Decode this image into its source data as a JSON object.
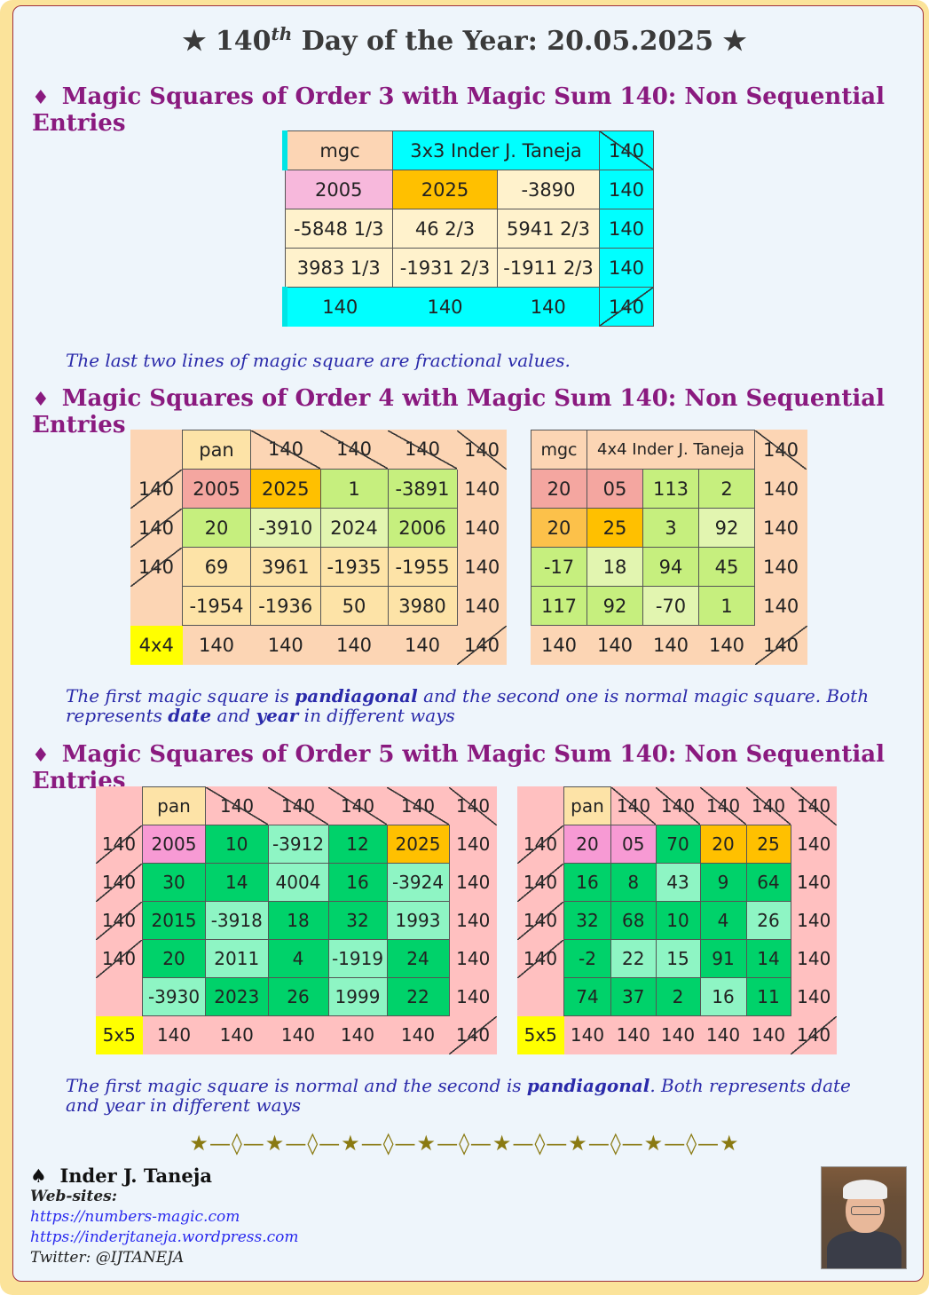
{
  "title": {
    "prefix": "★ 140",
    "sup": "th",
    "suffix": " Day of the Year: 20.05.2025 ★"
  },
  "sections": [
    "Magic Squares of Order 3 with Magic Sum 140: Non Sequential Entries",
    "Magic Squares of Order 4 with Magic Sum 140: Non Sequential Entries",
    "Magic Squares of Order 5 with Magic Sum 140: Non Sequential Entries"
  ],
  "diamond": "♦",
  "notes": {
    "n3": "The last two lines of magic square are fractional values.",
    "n4": {
      "a": "The first magic square is ",
      "b": "pandiagonal",
      "c": " and the second one is normal magic square.  Both represents ",
      "d": "date",
      "e": " and ",
      "f": "year",
      "g": " in different ways"
    },
    "n5": {
      "a": "The first magic square is normal and the second is ",
      "b": "pandiagonal",
      "c": ".  Both represents date and year in different ways"
    }
  },
  "sq3": {
    "label": "mgc",
    "title": "3x3  Inder J. Taneja",
    "sum": "140",
    "rows": [
      [
        "2005",
        "2025",
        "-3890"
      ],
      [
        "-5848 1/3",
        "46 2/3",
        "5941 2/3"
      ],
      [
        "3983 1/3",
        "-1931 2/3",
        "-1911 2/3"
      ]
    ],
    "colsums": [
      "140",
      "140",
      "140"
    ]
  },
  "sq4a": {
    "label": "pan",
    "corner": "4x4",
    "sum": "140",
    "rows": [
      [
        "2005",
        "2025",
        "1",
        "-3891"
      ],
      [
        "20",
        "-3910",
        "2024",
        "2006"
      ],
      [
        "69",
        "3961",
        "-1935",
        "-1955"
      ],
      [
        "-1954",
        "-1936",
        "50",
        "3980"
      ]
    ]
  },
  "sq4b": {
    "label": "mgc",
    "title": "4x4  Inder J. Taneja",
    "sum": "140",
    "rows": [
      [
        "20",
        "05",
        "113",
        "2"
      ],
      [
        "20",
        "25",
        "3",
        "92"
      ],
      [
        "-17",
        "18",
        "94",
        "45"
      ],
      [
        "117",
        "92",
        "-70",
        "1"
      ]
    ]
  },
  "sq5a": {
    "label": "pan",
    "corner": "5x5",
    "sum": "140",
    "rows": [
      [
        "2005",
        "10",
        "-3912",
        "12",
        "2025"
      ],
      [
        "30",
        "14",
        "4004",
        "16",
        "-3924"
      ],
      [
        "2015",
        "-3918",
        "18",
        "32",
        "1993"
      ],
      [
        "20",
        "2011",
        "4",
        "-1919",
        "24"
      ],
      [
        "-3930",
        "2023",
        "26",
        "1999",
        "22"
      ]
    ]
  },
  "sq5b": {
    "label": "pan",
    "corner": "5x5",
    "sum": "140",
    "rows": [
      [
        "20",
        "05",
        "70",
        "20",
        "25"
      ],
      [
        "16",
        "8",
        "43",
        "9",
        "64"
      ],
      [
        "32",
        "68",
        "10",
        "4",
        "26"
      ],
      [
        "-2",
        "22",
        "15",
        "91",
        "14"
      ],
      [
        "74",
        "37",
        "2",
        "16",
        "11"
      ]
    ]
  },
  "colors": {
    "peach": "#fcd5b4",
    "cyan": "#00ffff",
    "pink": "#f7a7d8",
    "orange": "#ffc000",
    "cream": "#fff2cc",
    "salmon": "#f4a6a0",
    "lime": "#c6ef7e",
    "lightlime": "#e2f5b0",
    "tan": "#fde3a7",
    "yellow": "#ffff00",
    "rose": "#ffc0c0",
    "green": "#00d26a",
    "mint": "#8ef5c4"
  },
  "stars": "★—◊—★—◊—★—◊—★—◊—★—◊—★—◊—★—◊—★",
  "author": {
    "spade": "♠",
    "name": "Inder J. Taneja",
    "websites_label": "Web-sites:",
    "site1": "https://numbers-magic.com",
    "site2": "https://inderjtaneja.wordpress.com",
    "twitter": "Twitter: @IJTANEJA"
  }
}
